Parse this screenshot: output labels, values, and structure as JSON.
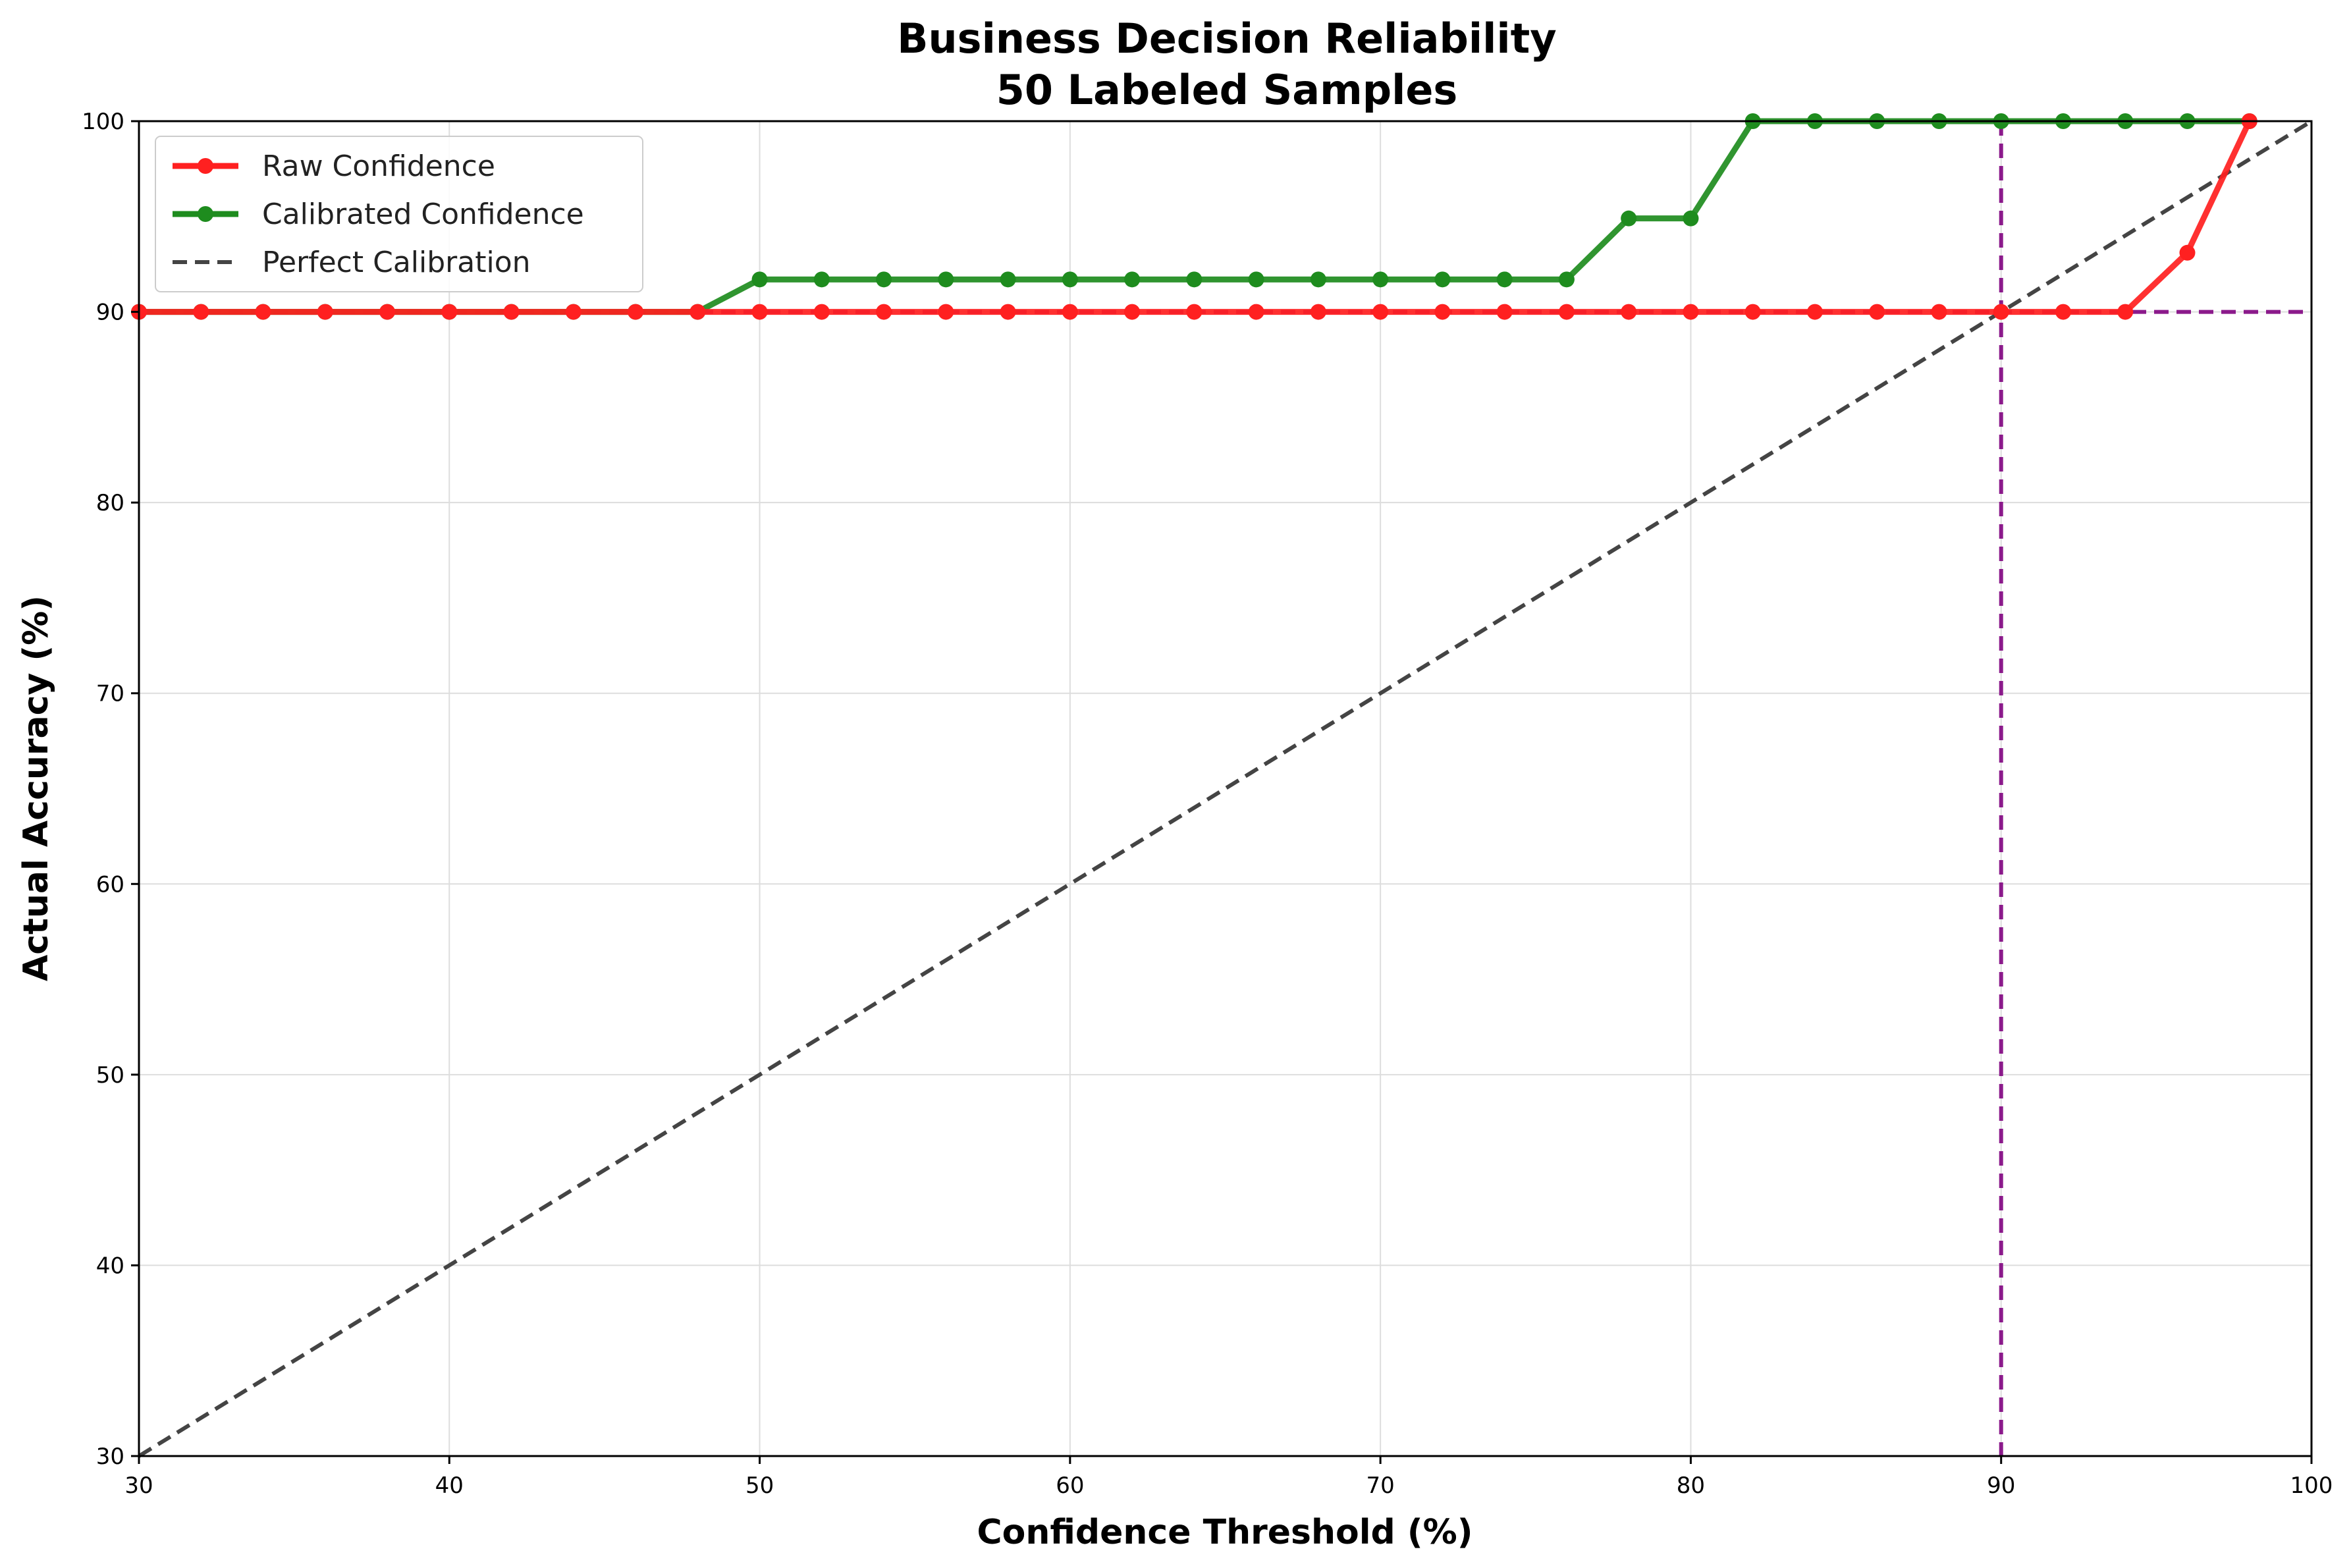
{
  "chart_data": {
    "type": "line",
    "title": "Business Decision Reliability",
    "subtitle": "50 Labeled Samples",
    "xlabel": "Confidence Threshold (%)",
    "ylabel": "Actual Accuracy (%)",
    "xlim": [
      30,
      100
    ],
    "ylim": [
      30,
      100
    ],
    "xticks": [
      "30",
      "40",
      "50",
      "60",
      "70",
      "80",
      "90",
      "100"
    ],
    "yticks": [
      "30",
      "40",
      "50",
      "60",
      "70",
      "80",
      "90",
      "100"
    ],
    "grid": true,
    "legend_position": "top-left",
    "x": [
      30,
      32,
      34,
      36,
      38,
      40,
      42,
      44,
      46,
      48,
      50,
      52,
      54,
      56,
      58,
      60,
      62,
      64,
      66,
      68,
      70,
      72,
      74,
      76,
      78,
      80,
      82,
      84,
      86,
      88,
      90,
      92,
      94,
      96,
      98
    ],
    "series": [
      {
        "name": "Raw Confidence",
        "color": "#ff2020",
        "values": [
          90,
          90,
          90,
          90,
          90,
          90,
          90,
          90,
          90,
          90,
          90,
          90,
          90,
          90,
          90,
          90,
          90,
          90,
          90,
          90,
          90,
          90,
          90,
          90,
          90,
          90,
          90,
          90,
          90,
          90,
          90,
          90,
          90,
          93.1,
          100
        ]
      },
      {
        "name": "Calibrated Confidence",
        "color": "#1e8c1e",
        "values": [
          90,
          90,
          90,
          90,
          90,
          90,
          90,
          90,
          90,
          90,
          91.7,
          91.7,
          91.7,
          91.7,
          91.7,
          91.7,
          91.7,
          91.7,
          91.7,
          91.7,
          91.7,
          91.7,
          91.7,
          91.7,
          94.9,
          94.9,
          100,
          100,
          100,
          100,
          100,
          100,
          100,
          100,
          100
        ]
      }
    ],
    "reference_line": {
      "name": "Perfect Calibration",
      "color": "#444444",
      "from": [
        30,
        30
      ],
      "to": [
        100,
        100
      ]
    },
    "target_lines": {
      "color": "#8b1a8b",
      "x": 90,
      "y": 90
    }
  }
}
